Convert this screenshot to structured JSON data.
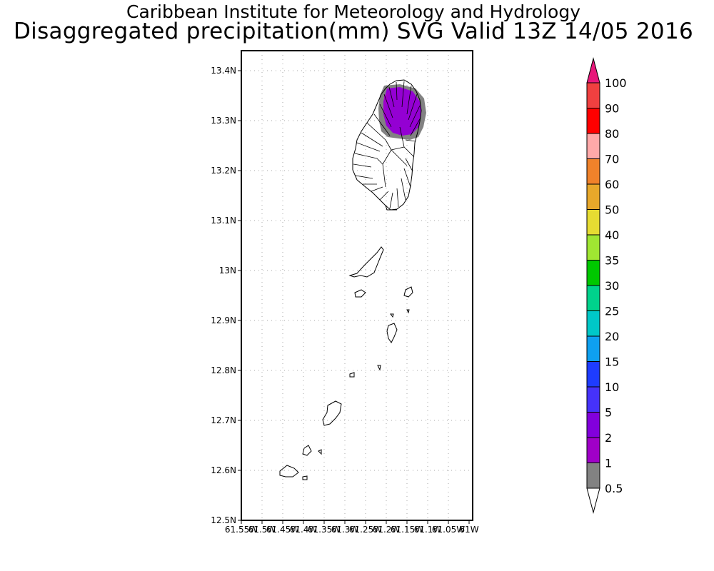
{
  "header": {
    "line1": "Caribbean Institute for Meteorology and Hydrology",
    "line2": "Disaggregated precipitation(mm) SVG Valid 13Z 14/05 2016"
  },
  "map": {
    "lat_labels": [
      "13.4N",
      "13.3N",
      "13.2N",
      "13.1N",
      "13N",
      "12.9N",
      "12.8N",
      "12.7N",
      "12.6N",
      "12.5N"
    ],
    "lon_labels": [
      "61.55W",
      "61.5W",
      "61.45W",
      "61.4W",
      "61.35W",
      "61.3W",
      "61.25W",
      "61.2W",
      "61.15W",
      "61.1W",
      "61.05W",
      "61W"
    ],
    "lat_range": [
      12.5,
      13.44
    ],
    "lon_range": [
      -61.55,
      -61.0
    ]
  },
  "colorbar": {
    "labels": [
      "100",
      "90",
      "80",
      "70",
      "60",
      "50",
      "40",
      "35",
      "30",
      "25",
      "20",
      "15",
      "10",
      "5",
      "2",
      "1",
      "0.5"
    ],
    "colors": [
      "#e8177a",
      "#f04040",
      "#ff0000",
      "#ffa9a9",
      "#f0822a",
      "#e8a82a",
      "#e6dc32",
      "#a0e632",
      "#00c800",
      "#00d28c",
      "#00c8c8",
      "#0ea0f0",
      "#1e3cff",
      "#4632fa",
      "#8200dc",
      "#a000c8",
      "#828282",
      "#ffffff"
    ]
  }
}
